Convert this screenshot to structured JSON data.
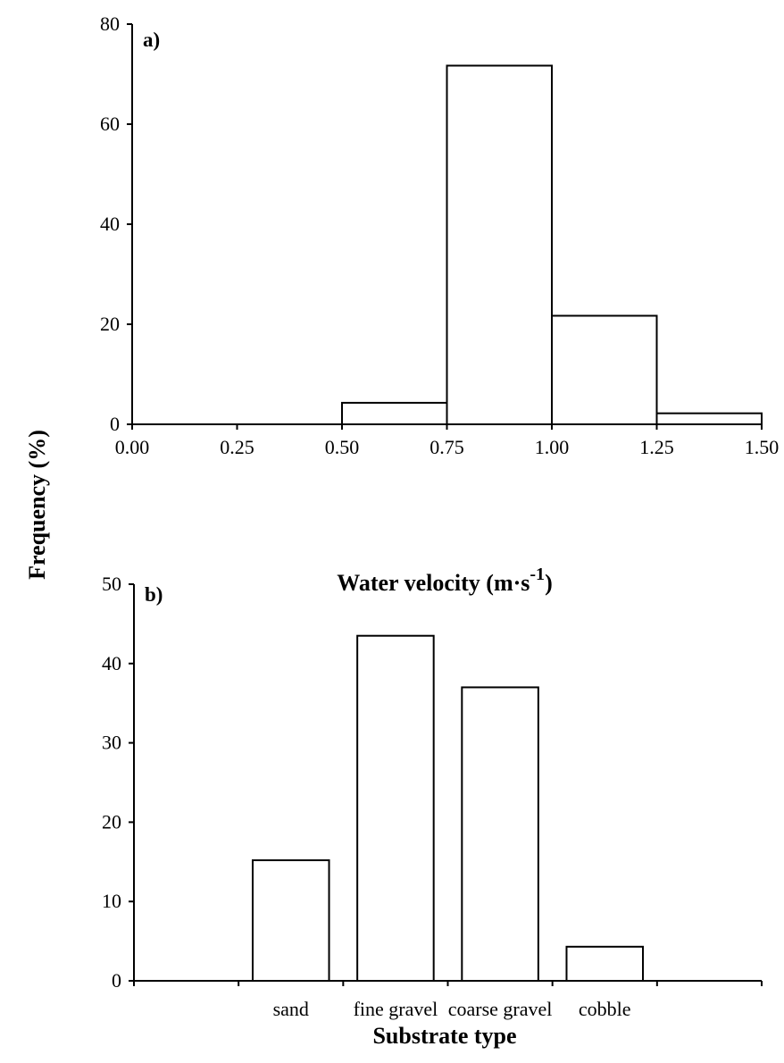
{
  "chart_data": {
    "shared_ylabel": "Frequency (%)",
    "panels": [
      {
        "type": "bar",
        "panel_label": "a)",
        "xlabel": {
          "main": "Water velocity (m·s",
          "sup": "-1",
          "end": ")"
        },
        "x_ticks": [
          "0.00",
          "0.25",
          "0.50",
          "0.75",
          "1.00",
          "1.25",
          "1.50"
        ],
        "y_ticks": [
          "0",
          "20",
          "40",
          "60",
          "80"
        ],
        "xlim": [
          0,
          1.5
        ],
        "ylim": [
          0,
          80
        ],
        "bins": [
          {
            "from": 0.5,
            "to": 0.75,
            "value": 4.3
          },
          {
            "from": 0.75,
            "to": 1.0,
            "value": 71.7
          },
          {
            "from": 1.0,
            "to": 1.25,
            "value": 21.7
          },
          {
            "from": 1.25,
            "to": 1.5,
            "value": 2.2
          }
        ]
      },
      {
        "type": "bar",
        "panel_label": "b)",
        "xlabel": "Substrate type",
        "y_ticks": [
          "0",
          "10",
          "20",
          "30",
          "40",
          "50"
        ],
        "ylim": [
          0,
          50
        ],
        "categories": [
          "sand",
          "fine gravel",
          "coarse gravel",
          "cobble"
        ],
        "values": [
          15.2,
          43.5,
          37.0,
          4.3
        ]
      }
    ]
  }
}
